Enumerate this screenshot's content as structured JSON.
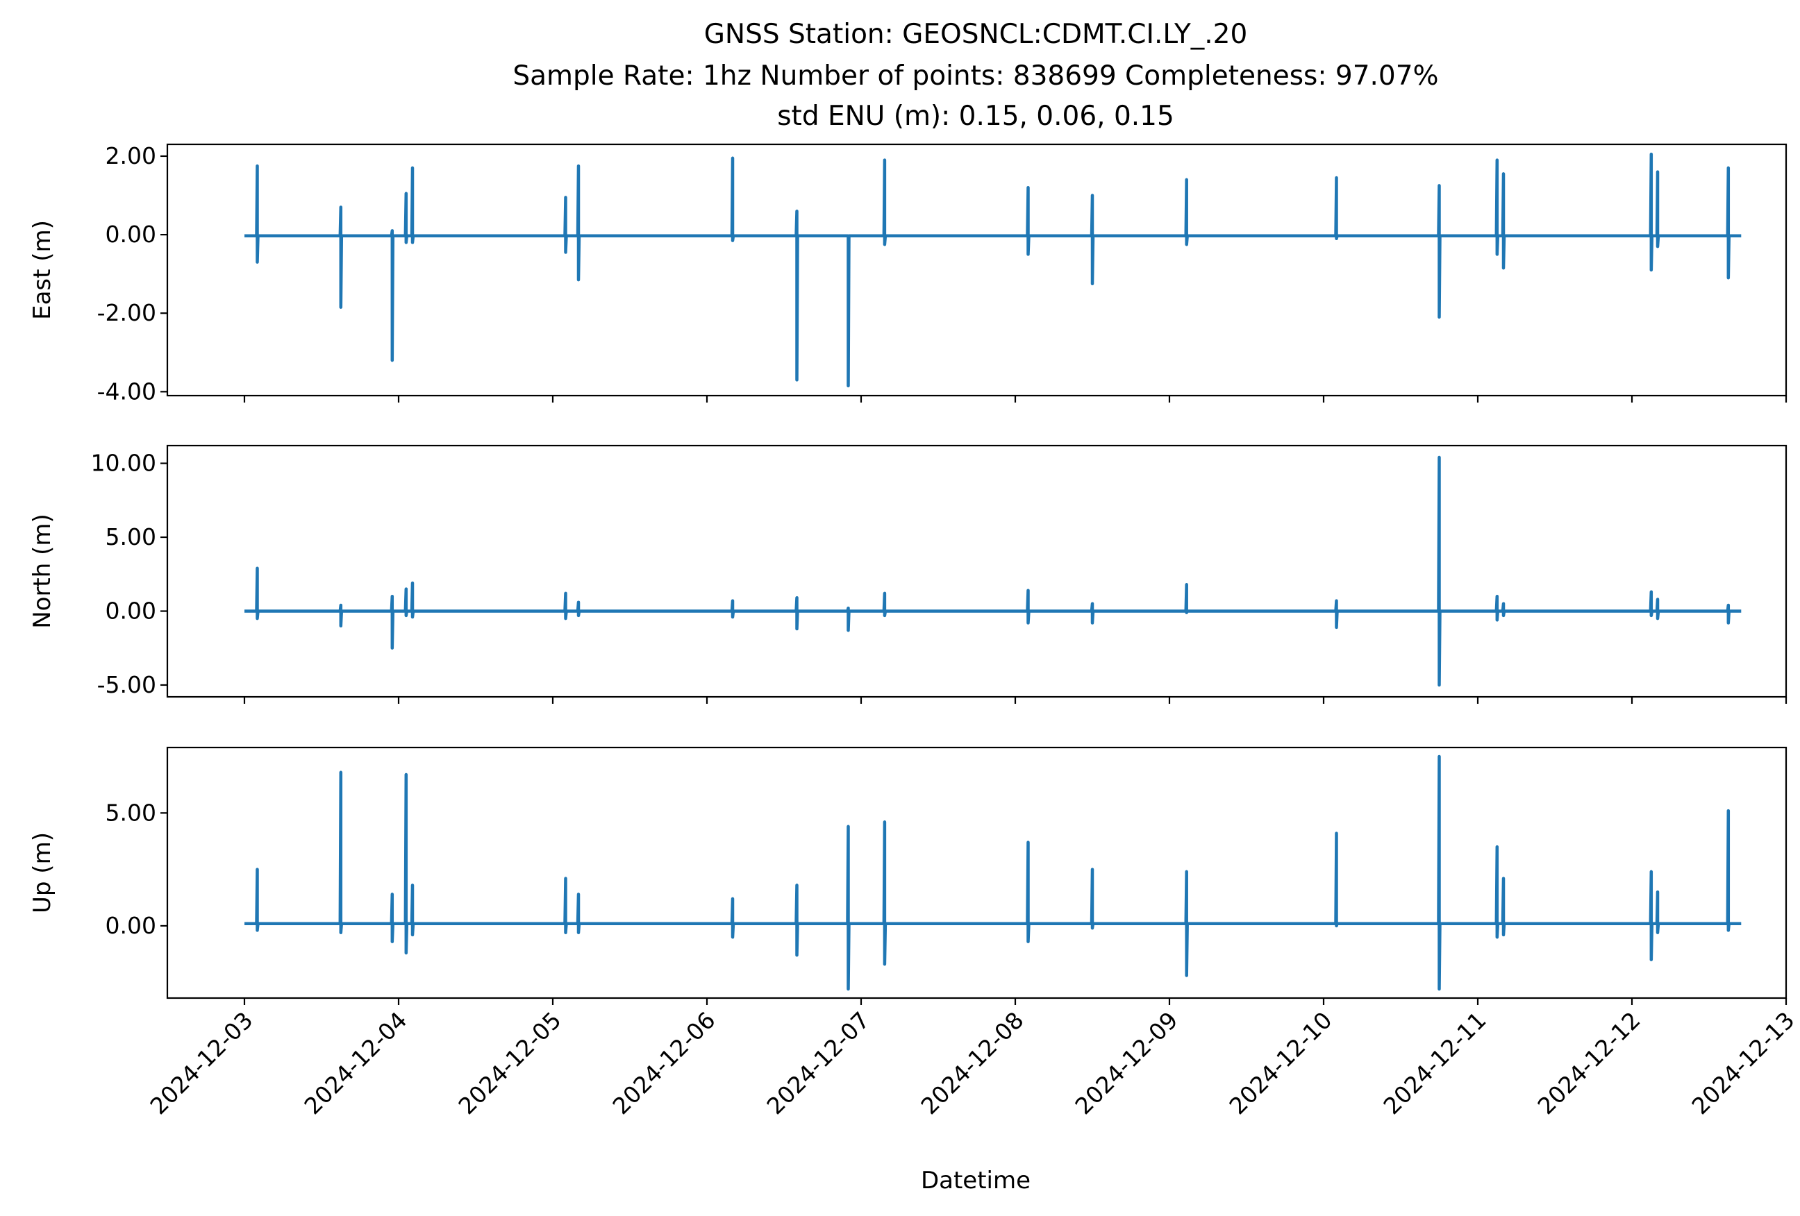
{
  "chart_data": {
    "type": "line",
    "title_lines": [
      "GNSS Station: GEOSNCL:CDMT.CI.LY_.20",
      "Sample Rate: 1hz   Number of points: 838699    Completeness:  97.07%",
      "std ENU (m):  0.15, 0.06, 0.15"
    ],
    "xlabel": "Datetime",
    "x_ticks": [
      "2024-12-03",
      "2024-12-04",
      "2024-12-05",
      "2024-12-06",
      "2024-12-07",
      "2024-12-08",
      "2024-12-09",
      "2024-12-10",
      "2024-12-11",
      "2024-12-12",
      "2024-12-13"
    ],
    "xlim": [
      "2024-12-02T12:00",
      "2024-12-13T00:00"
    ],
    "line_color": "#1f77b4",
    "grid": false,
    "panels": [
      {
        "ylabel": "East (m)",
        "ylim": [
          -4.1,
          2.3
        ],
        "y_ticks": [
          2.0,
          0.0,
          -2.0,
          -4.0
        ],
        "y_tick_labels": [
          "2.00",
          "0.00",
          "-2.00",
          "-4.00"
        ],
        "baseline": -0.03,
        "spikes": [
          {
            "t": "2024-12-03T02:00",
            "max": 1.75,
            "min": -0.7
          },
          {
            "t": "2024-12-03T15:00",
            "max": 0.7,
            "min": -1.85
          },
          {
            "t": "2024-12-03T23:00",
            "max": 0.1,
            "min": -3.2
          },
          {
            "t": "2024-12-04T01:10",
            "max": 1.05,
            "min": -0.2
          },
          {
            "t": "2024-12-04T02:10",
            "max": 1.7,
            "min": -0.2
          },
          {
            "t": "2024-12-05T02:00",
            "max": 0.95,
            "min": -0.45
          },
          {
            "t": "2024-12-05T04:00",
            "max": 1.75,
            "min": -1.15
          },
          {
            "t": "2024-12-06T04:00",
            "max": 1.95,
            "min": -0.15
          },
          {
            "t": "2024-12-06T14:00",
            "max": 0.6,
            "min": -3.7
          },
          {
            "t": "2024-12-06T22:00",
            "max": -0.05,
            "min": -3.85
          },
          {
            "t": "2024-12-07T03:40",
            "max": 1.9,
            "min": -0.25
          },
          {
            "t": "2024-12-08T02:00",
            "max": 1.2,
            "min": -0.5
          },
          {
            "t": "2024-12-08T12:00",
            "max": 1.0,
            "min": -1.25
          },
          {
            "t": "2024-12-09T02:40",
            "max": 1.4,
            "min": -0.25
          },
          {
            "t": "2024-12-10T02:00",
            "max": 1.45,
            "min": -0.1
          },
          {
            "t": "2024-12-10T18:00",
            "max": 1.25,
            "min": -2.1
          },
          {
            "t": "2024-12-11T03:00",
            "max": 1.9,
            "min": -0.5
          },
          {
            "t": "2024-12-11T04:00",
            "max": 1.55,
            "min": -0.85
          },
          {
            "t": "2024-12-12T03:00",
            "max": 2.05,
            "min": -0.9
          },
          {
            "t": "2024-12-12T04:00",
            "max": 1.6,
            "min": -0.3
          },
          {
            "t": "2024-12-12T15:00",
            "max": 1.7,
            "min": -1.1
          }
        ]
      },
      {
        "ylabel": "North (m)",
        "ylim": [
          -5.8,
          11.2
        ],
        "y_ticks": [
          10.0,
          5.0,
          0.0,
          -5.0
        ],
        "y_tick_labels": [
          "10.00",
          "5.00",
          "0.00",
          "-5.00"
        ],
        "baseline": 0.0,
        "spikes": [
          {
            "t": "2024-12-03T02:00",
            "max": 2.9,
            "min": -0.5
          },
          {
            "t": "2024-12-03T15:00",
            "max": 0.4,
            "min": -1.0
          },
          {
            "t": "2024-12-03T23:00",
            "max": 1.0,
            "min": -2.5
          },
          {
            "t": "2024-12-04T01:10",
            "max": 1.5,
            "min": -0.3
          },
          {
            "t": "2024-12-04T02:10",
            "max": 1.9,
            "min": -0.4
          },
          {
            "t": "2024-12-05T02:00",
            "max": 1.2,
            "min": -0.5
          },
          {
            "t": "2024-12-05T04:00",
            "max": 0.6,
            "min": -0.3
          },
          {
            "t": "2024-12-06T04:00",
            "max": 0.7,
            "min": -0.4
          },
          {
            "t": "2024-12-06T14:00",
            "max": 0.9,
            "min": -1.2
          },
          {
            "t": "2024-12-06T22:00",
            "max": 0.2,
            "min": -1.3
          },
          {
            "t": "2024-12-07T03:40",
            "max": 1.2,
            "min": -0.3
          },
          {
            "t": "2024-12-08T02:00",
            "max": 1.4,
            "min": -0.8
          },
          {
            "t": "2024-12-08T12:00",
            "max": 0.5,
            "min": -0.8
          },
          {
            "t": "2024-12-09T02:40",
            "max": 1.8,
            "min": -0.1
          },
          {
            "t": "2024-12-10T02:00",
            "max": 0.7,
            "min": -1.1
          },
          {
            "t": "2024-12-10T18:00",
            "max": 10.4,
            "min": -5.0
          },
          {
            "t": "2024-12-11T03:00",
            "max": 1.0,
            "min": -0.6
          },
          {
            "t": "2024-12-11T04:00",
            "max": 0.5,
            "min": -0.3
          },
          {
            "t": "2024-12-12T03:00",
            "max": 1.3,
            "min": -0.3
          },
          {
            "t": "2024-12-12T04:00",
            "max": 0.8,
            "min": -0.5
          },
          {
            "t": "2024-12-12T15:00",
            "max": 0.4,
            "min": -0.8
          }
        ]
      },
      {
        "ylabel": "Up (m)",
        "ylim": [
          -3.2,
          7.9
        ],
        "y_ticks": [
          5.0,
          0.0
        ],
        "y_tick_labels": [
          "5.00",
          "0.00"
        ],
        "baseline": 0.1,
        "spikes": [
          {
            "t": "2024-12-03T02:00",
            "max": 2.5,
            "min": -0.2
          },
          {
            "t": "2024-12-03T15:00",
            "max": 6.8,
            "min": -0.3
          },
          {
            "t": "2024-12-03T23:00",
            "max": 1.4,
            "min": -0.7
          },
          {
            "t": "2024-12-04T01:10",
            "max": 6.7,
            "min": -1.2
          },
          {
            "t": "2024-12-04T02:10",
            "max": 1.8,
            "min": -0.4
          },
          {
            "t": "2024-12-05T02:00",
            "max": 2.1,
            "min": -0.3
          },
          {
            "t": "2024-12-05T04:00",
            "max": 1.4,
            "min": -0.3
          },
          {
            "t": "2024-12-06T04:00",
            "max": 1.2,
            "min": -0.5
          },
          {
            "t": "2024-12-06T14:00",
            "max": 1.8,
            "min": -1.3
          },
          {
            "t": "2024-12-06T22:00",
            "max": 4.4,
            "min": -2.8
          },
          {
            "t": "2024-12-07T03:40",
            "max": 4.6,
            "min": -1.7
          },
          {
            "t": "2024-12-08T02:00",
            "max": 3.7,
            "min": -0.7
          },
          {
            "t": "2024-12-08T12:00",
            "max": 2.5,
            "min": -0.1
          },
          {
            "t": "2024-12-09T02:40",
            "max": 2.4,
            "min": -2.2
          },
          {
            "t": "2024-12-10T02:00",
            "max": 4.1,
            "min": 0.0
          },
          {
            "t": "2024-12-10T18:00",
            "max": 7.5,
            "min": -2.8
          },
          {
            "t": "2024-12-11T03:00",
            "max": 3.5,
            "min": -0.5
          },
          {
            "t": "2024-12-11T04:00",
            "max": 2.1,
            "min": -0.4
          },
          {
            "t": "2024-12-12T03:00",
            "max": 2.4,
            "min": -1.5
          },
          {
            "t": "2024-12-12T04:00",
            "max": 1.5,
            "min": -0.3
          },
          {
            "t": "2024-12-12T15:00",
            "max": 5.1,
            "min": -0.2
          }
        ]
      }
    ],
    "data_range": [
      "2024-12-03T00:00",
      "2024-12-12T17:00"
    ]
  }
}
